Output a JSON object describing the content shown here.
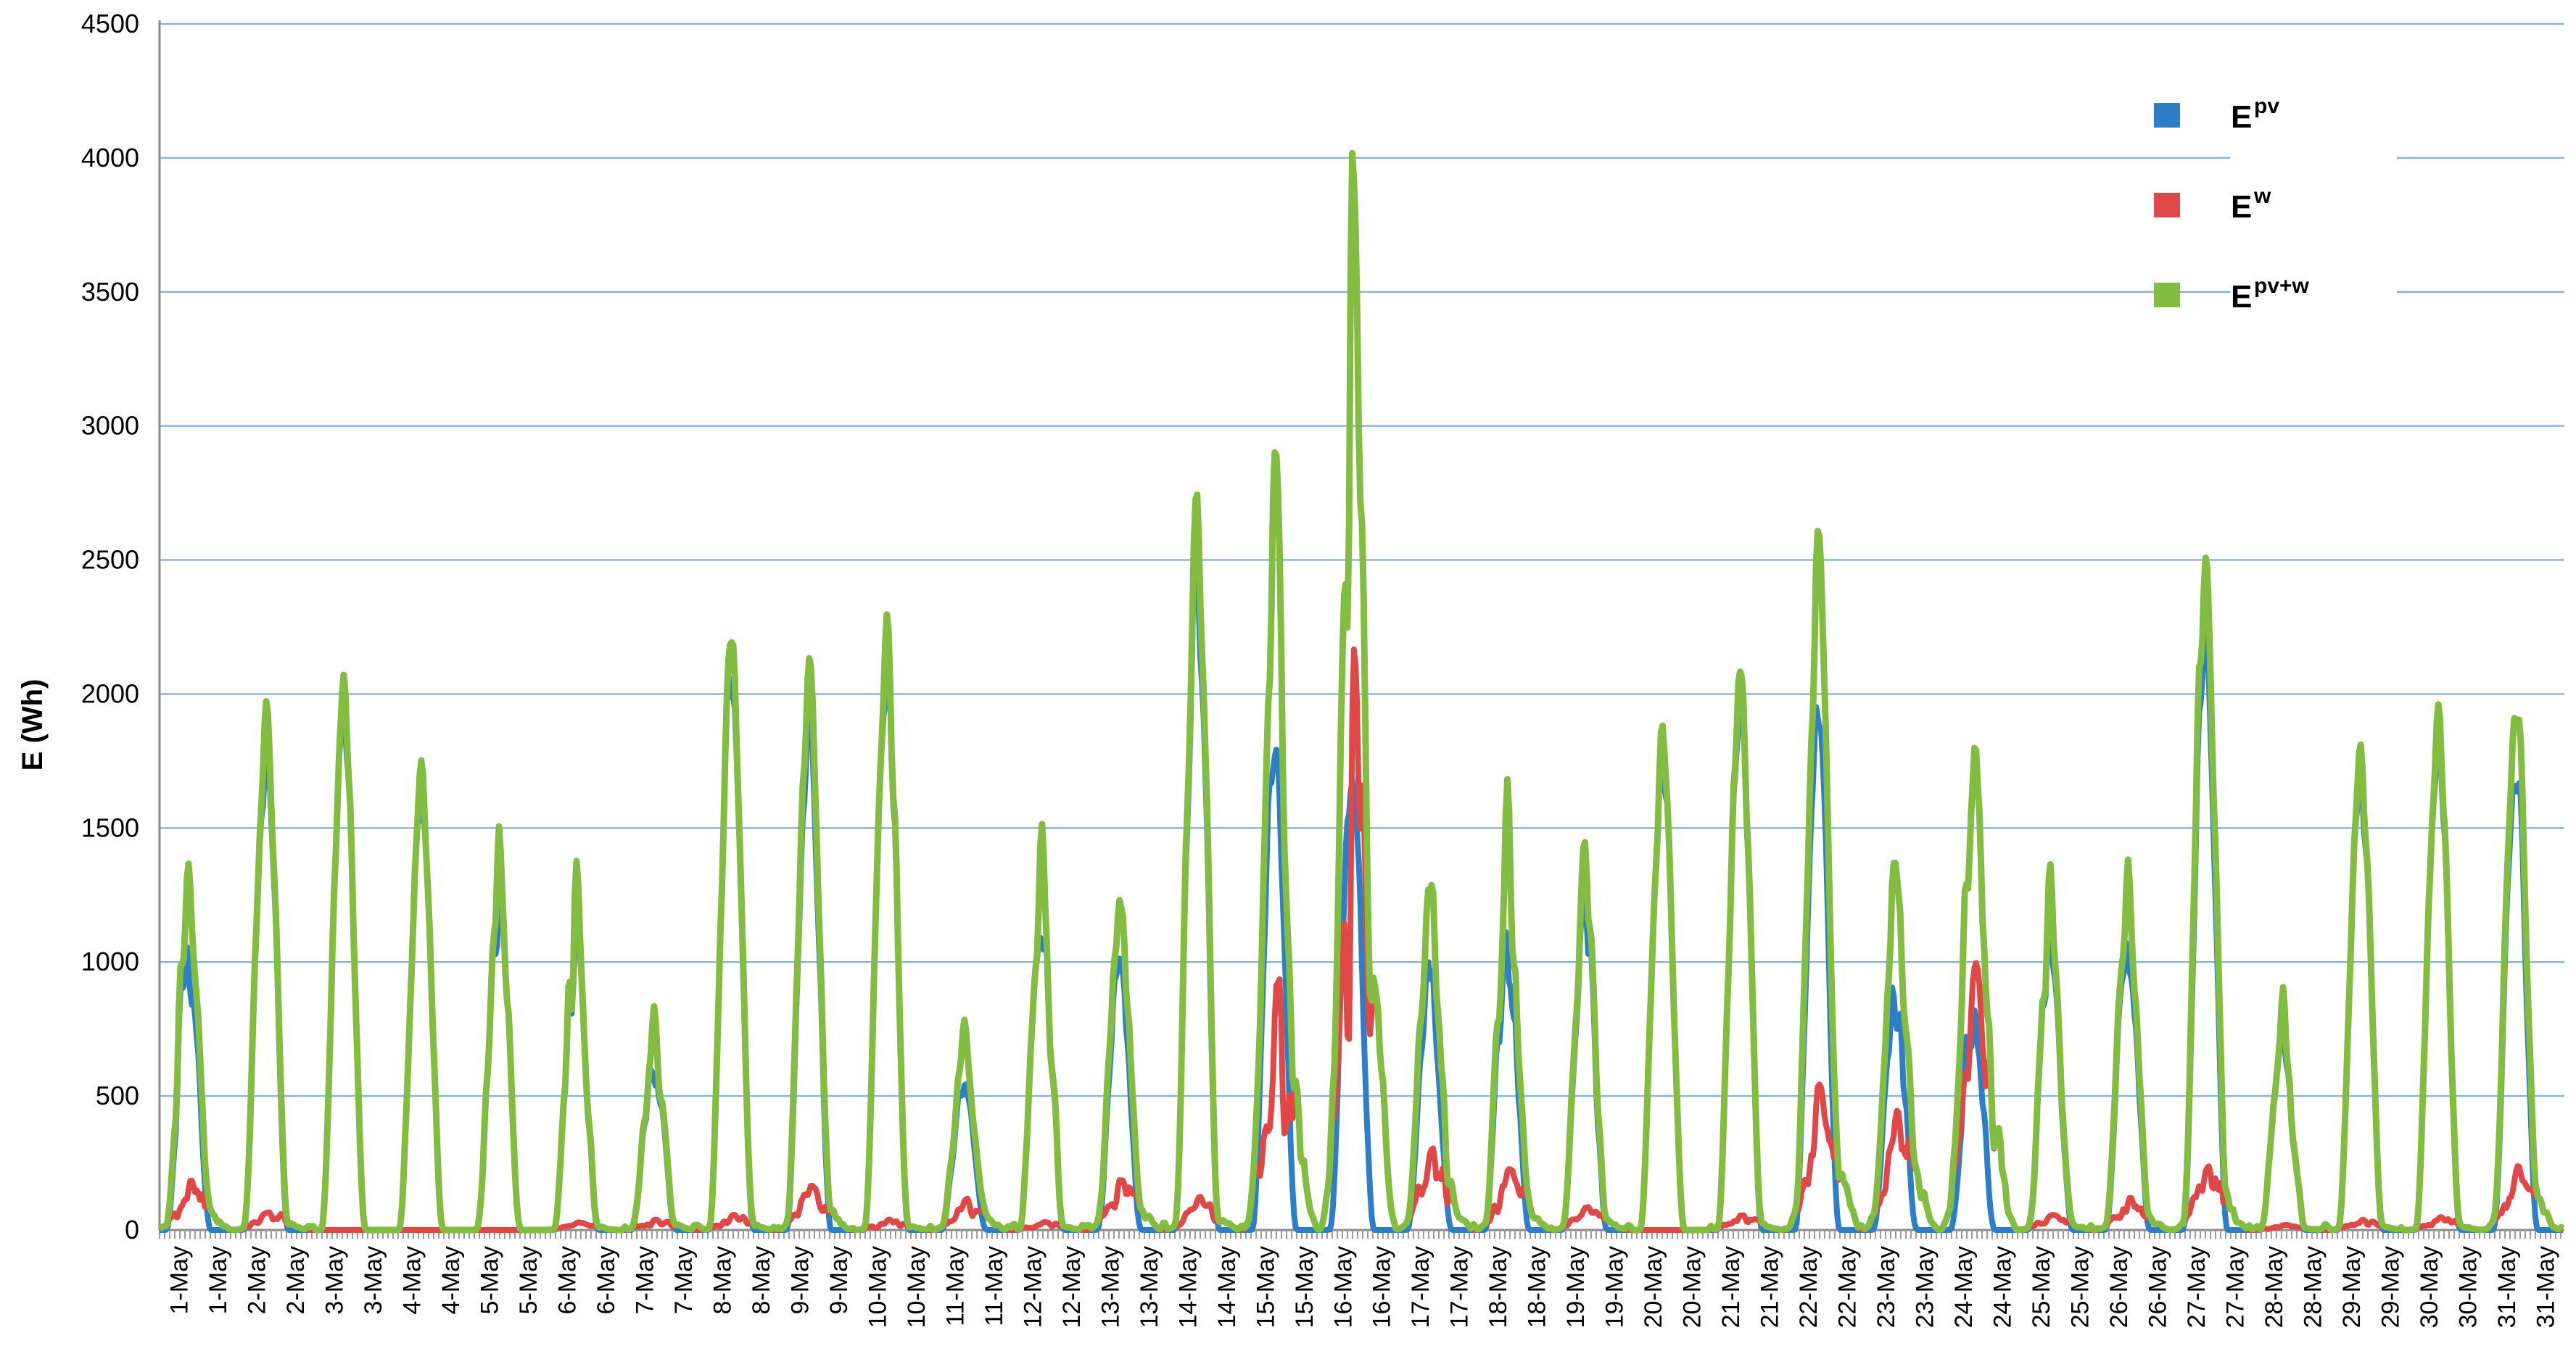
{
  "chart_data": {
    "type": "line",
    "title": "",
    "ylabel": "E (Wh)",
    "xlabel": "",
    "ylim": [
      0,
      4500
    ],
    "yticks": [
      "0",
      "500",
      "1000",
      "1500",
      "2000",
      "2500",
      "3000",
      "3500",
      "4000",
      "4500"
    ],
    "xticks": [
      "1-May",
      "1-May",
      "2-May",
      "2-May",
      "3-May",
      "3-May",
      "4-May",
      "4-May",
      "5-May",
      "5-May",
      "6-May",
      "6-May",
      "7-May",
      "7-May",
      "8-May",
      "8-May",
      "9-May",
      "9-May",
      "10-May",
      "10-May",
      "11-May",
      "11-May",
      "12-May",
      "12-May",
      "13-May",
      "13-May",
      "14-May",
      "14-May",
      "15-May",
      "15-May",
      "16-May",
      "16-May",
      "17-May",
      "17-May",
      "18-May",
      "18-May",
      "19-May",
      "19-May",
      "20-May",
      "20-May",
      "21-May",
      "21-May",
      "22-May",
      "22-May",
      "23-May",
      "23-May",
      "24-May",
      "24-May",
      "25-May",
      "25-May",
      "26-May",
      "26-May",
      "27-May",
      "27-May",
      "28-May",
      "28-May",
      "29-May",
      "29-May",
      "30-May",
      "30-May",
      "31-May",
      "31-May"
    ],
    "grid": true,
    "legend_position": "top-right",
    "series": [
      {
        "name": "E",
        "sup": "pv",
        "color": "#2E7EC7"
      },
      {
        "name": "E",
        "sup": "w",
        "color": "#E04848"
      },
      {
        "name": "E",
        "sup": "pv+w",
        "color": "#82BC41"
      }
    ],
    "days": [
      {
        "pv_peak": 1340,
        "w_peak": 190,
        "total_peak": 1430
      },
      {
        "pv_peak": 1950,
        "w_peak": 70,
        "total_peak": 2020
      },
      {
        "pv_peak": 2120,
        "w_peak": 0,
        "total_peak": 2120
      },
      {
        "pv_peak": 1780,
        "w_peak": 0,
        "total_peak": 1780
      },
      {
        "pv_peak": 1560,
        "w_peak": 0,
        "total_peak": 1560
      },
      {
        "pv_peak": 1390,
        "w_peak": 30,
        "total_peak": 1400
      },
      {
        "pv_peak": 840,
        "w_peak": 40,
        "total_peak": 860
      },
      {
        "pv_peak": 2230,
        "w_peak": 60,
        "total_peak": 2270
      },
      {
        "pv_peak": 2060,
        "w_peak": 170,
        "total_peak": 2110
      },
      {
        "pv_peak": 2300,
        "w_peak": 40,
        "total_peak": 2340
      },
      {
        "pv_peak": 700,
        "w_peak": 120,
        "total_peak": 800
      },
      {
        "pv_peak": 1500,
        "w_peak": 30,
        "total_peak": 1540
      },
      {
        "pv_peak": 1180,
        "w_peak": 200,
        "total_peak": 1250
      },
      {
        "pv_peak": 2700,
        "w_peak": 130,
        "total_peak": 2730
      },
      {
        "pv_peak": 2030,
        "w_peak": 980,
        "total_peak": 2960
      },
      {
        "pv_peak": 1800,
        "w_peak": 2280,
        "total_peak": 4080
      },
      {
        "pv_peak": 1240,
        "w_peak": 320,
        "total_peak": 1280
      },
      {
        "pv_peak": 1400,
        "w_peak": 240,
        "total_peak": 1730
      },
      {
        "pv_peak": 1460,
        "w_peak": 90,
        "total_peak": 1490
      },
      {
        "pv_peak": 1930,
        "w_peak": 0,
        "total_peak": 1950
      },
      {
        "pv_peak": 2120,
        "w_peak": 60,
        "total_peak": 2150
      },
      {
        "pv_peak": 2140,
        "w_peak": 550,
        "total_peak": 2690
      },
      {
        "pv_peak": 1120,
        "w_peak": 460,
        "total_peak": 1400
      },
      {
        "pv_peak": 1100,
        "w_peak": 1030,
        "total_peak": 1610
      },
      {
        "pv_peak": 1350,
        "w_peak": 60,
        "total_peak": 1380
      },
      {
        "pv_peak": 1360,
        "w_peak": 130,
        "total_peak": 1400
      },
      {
        "pv_peak": 2460,
        "w_peak": 250,
        "total_peak": 2500
      },
      {
        "pv_peak": 920,
        "w_peak": 20,
        "total_peak": 940
      },
      {
        "pv_peak": 1840,
        "w_peak": 40,
        "total_peak": 1860
      },
      {
        "pv_peak": 2000,
        "w_peak": 50,
        "total_peak": 2010
      },
      {
        "pv_peak": 1900,
        "w_peak": 250,
        "total_peak": 1980
      }
    ]
  }
}
